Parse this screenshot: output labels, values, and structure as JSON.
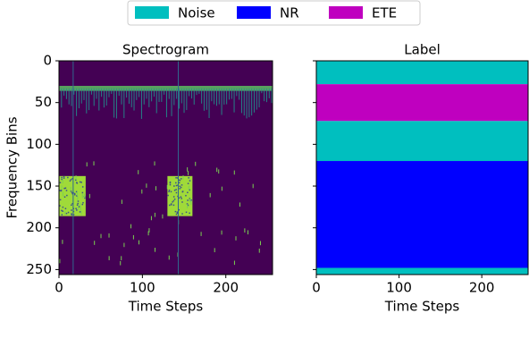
{
  "chart_data": [
    {
      "type": "spectrogram",
      "title": "Spectrogram",
      "xlabel": "Time Steps",
      "ylabel": "Frequency Bins",
      "xlim": [
        0,
        256
      ],
      "ylim": [
        256,
        0
      ],
      "xticks": [
        0,
        100,
        200
      ],
      "yticks": [
        0,
        50,
        100,
        150,
        200,
        250
      ]
    },
    {
      "type": "label-bands",
      "title": "Label",
      "xlabel": "Time Steps",
      "xlim": [
        0,
        256
      ],
      "ylim": [
        256,
        0
      ],
      "xticks": [
        0,
        100,
        200
      ],
      "yticks": [
        0,
        50,
        100,
        150,
        200,
        250
      ],
      "series": [
        {
          "name": "Noise",
          "color": "#00bfbf",
          "ranges": [
            [
              0,
              28
            ],
            [
              72,
              120
            ],
            [
              248,
              256
            ]
          ]
        },
        {
          "name": "NR",
          "color": "#0000ff",
          "ranges": [
            [
              120,
              248
            ]
          ]
        },
        {
          "name": "ETE",
          "color": "#bf00bf",
          "ranges": [
            [
              28,
              72
            ]
          ]
        }
      ]
    }
  ]
}
